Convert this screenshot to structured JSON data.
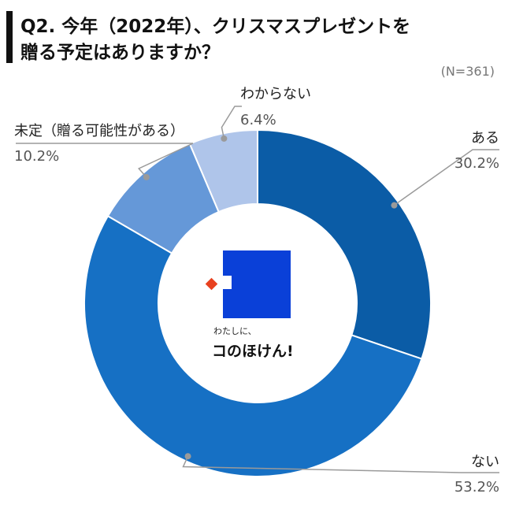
{
  "header": {
    "title_line1": "Q2. 今年（2022年）、クリスマスプレゼントを",
    "title_line2": "贈る予定はありますか？",
    "sample_size": "(N=361)"
  },
  "logo": {
    "tagline": "わたしに、",
    "name": "コのほけん!"
  },
  "chart_data": {
    "type": "pie",
    "donut": true,
    "start_angle_deg": 0,
    "direction": "clockwise",
    "slices": [
      {
        "label": "ある",
        "value": 30.2,
        "value_text": "30.2%",
        "color": "#0B5CA6"
      },
      {
        "label": "ない",
        "value": 53.2,
        "value_text": "53.2%",
        "color": "#1670C4"
      },
      {
        "label": "未定（贈る可能性がある）",
        "value": 10.2,
        "value_text": "10.2%",
        "color": "#6598D8"
      },
      {
        "label": "わからない",
        "value": 6.4,
        "value_text": "6.4%",
        "color": "#AFC5EA"
      }
    ]
  }
}
